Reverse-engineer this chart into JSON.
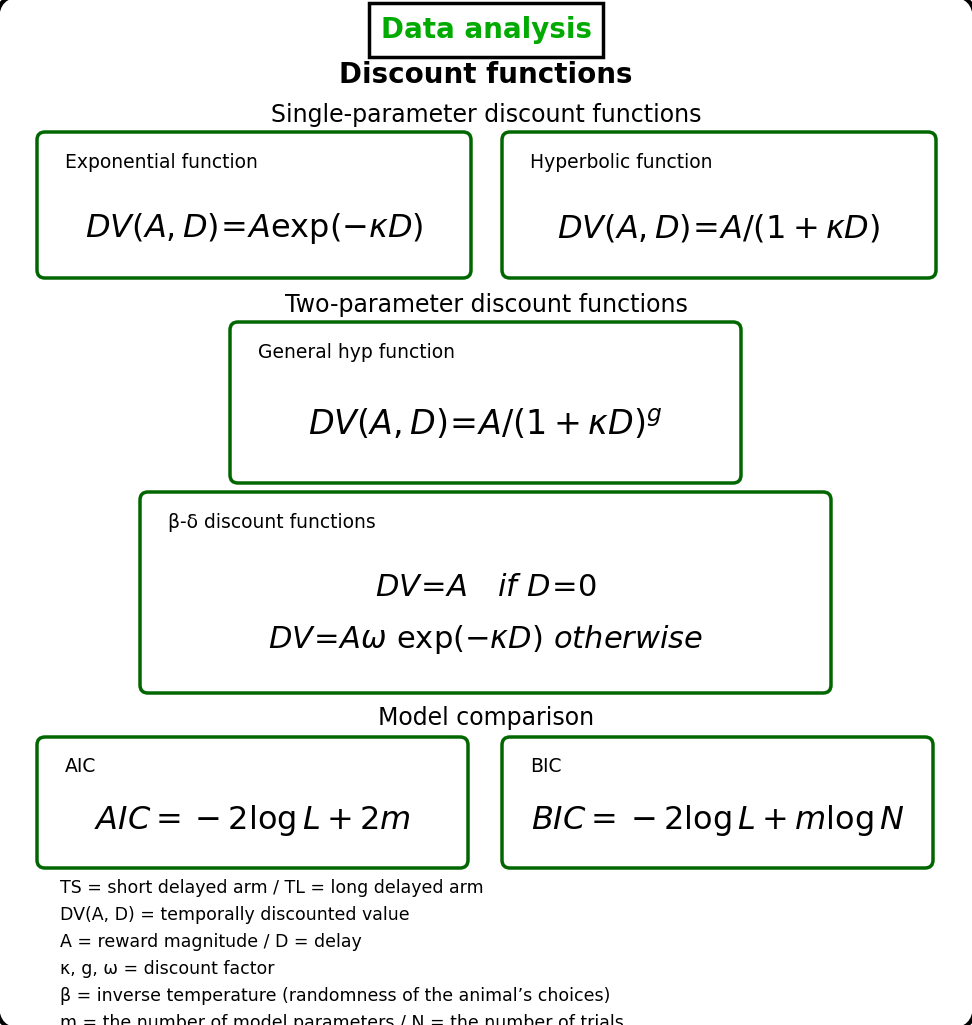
{
  "title_text": "Data analysis",
  "title_color": "#00aa00",
  "subtitle": "Discount functions",
  "section1": "Single-parameter discount functions",
  "section2": "Two-parameter discount functions",
  "section3": "Model comparison",
  "box1_label": "Exponential function",
  "box1_formula": "$DV(A,D)\\!=\\!A\\mathrm{exp}(-\\kappa D)$",
  "box2_label": "Hyperbolic function",
  "box2_formula": "$DV(A,D)\\!=\\!A/(1+\\kappa D)$",
  "box3_label": "General hyp function",
  "box3_formula": "$DV(A,D)\\!=\\!A/(1+\\kappa D)^{g}$",
  "box4_label": "β-δ discount functions",
  "box4_formula1": "$DV\\!=\\!A \\quad if\\ D\\!=\\!0$",
  "box4_formula2": "$DV\\!=\\!A\\omega\\ \\mathrm{exp}(-\\kappa D)\\ otherwise$",
  "box5_label": "AIC",
  "box5_formula": "$AIC = -2\\log L + 2m$",
  "box6_label": "BIC",
  "box6_formula": "$BIC = -2\\log L + m\\log N$",
  "legend_lines": [
    "TS = short delayed arm / TL = long delayed arm",
    "DV(A, D) = temporally discounted value",
    "A = reward magnitude / D = delay",
    "κ, g, ω = discount factor",
    "β = inverse temperature (randomness of the animal’s choices)",
    "m = the number of model parameters / N = the number of trials"
  ],
  "box_color": "#006600",
  "outer_box_color": "#000000",
  "background": "#ffffff"
}
